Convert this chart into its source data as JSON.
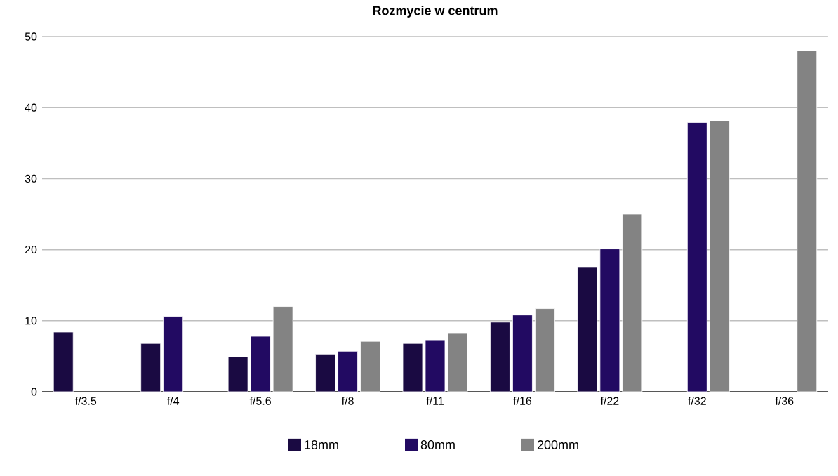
{
  "chart_data": {
    "type": "bar",
    "title": "Rozmycie w centrum",
    "categories": [
      "f/3.5",
      "f/4",
      "f/5.6",
      "f/8",
      "f/11",
      "f/16",
      "f/22",
      "f/32",
      "f/36"
    ],
    "series": [
      {
        "name": "18mm",
        "color": "#1a0a42",
        "values": [
          8.4,
          6.8,
          4.9,
          5.3,
          6.8,
          9.8,
          17.5,
          null,
          null
        ]
      },
      {
        "name": "80mm",
        "color": "#220a62",
        "values": [
          null,
          10.6,
          7.8,
          5.7,
          7.3,
          10.8,
          20.1,
          37.9,
          null
        ]
      },
      {
        "name": "200mm",
        "color": "#838383",
        "values": [
          null,
          null,
          12.0,
          7.1,
          8.2,
          11.7,
          25.0,
          38.1,
          48.0
        ]
      }
    ],
    "ylim": [
      0,
      50
    ],
    "yticks": [
      0,
      10,
      20,
      30,
      40,
      50
    ],
    "grid": "y",
    "legend": "bottom"
  }
}
